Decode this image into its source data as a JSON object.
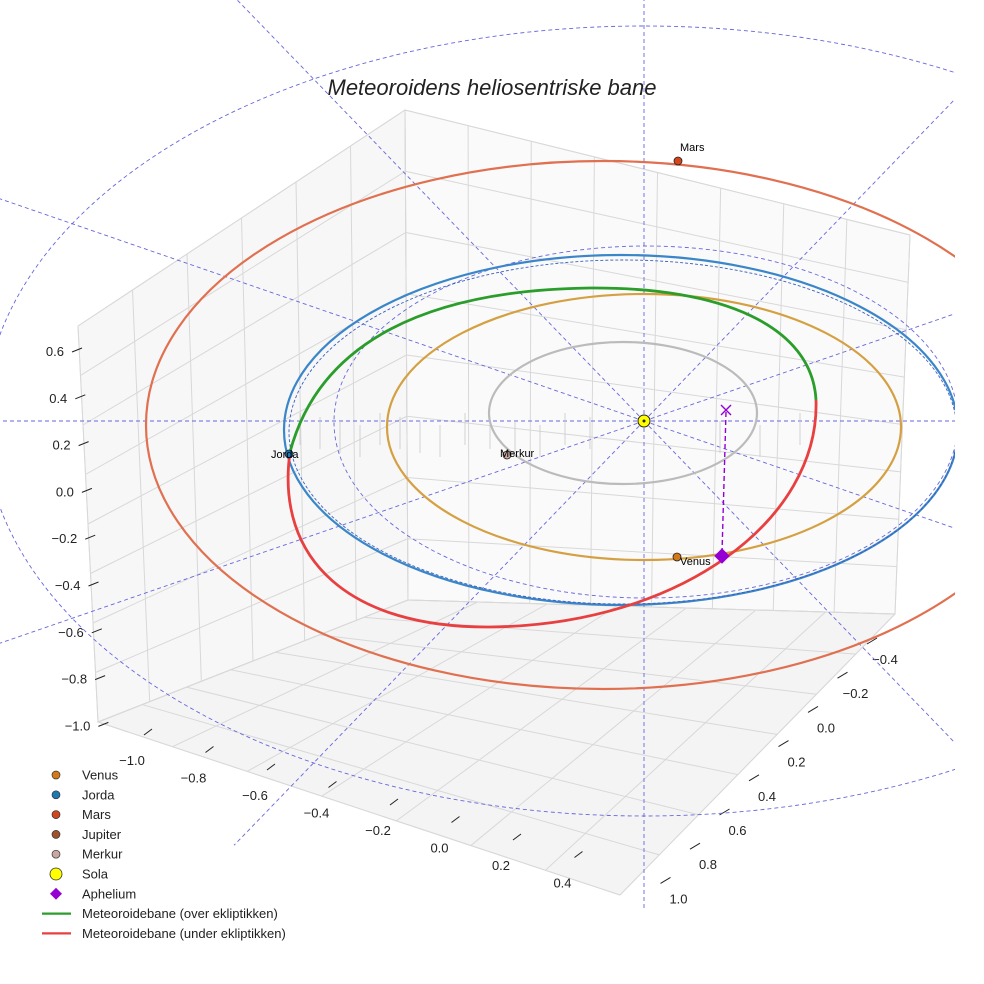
{
  "chart_data": {
    "type": "scatter",
    "projection": "3d",
    "title": "Meteoroidens heliosentriske bane",
    "xlabel": "",
    "ylabel": "",
    "zlabel": "",
    "x_ticks": [
      "−1.0",
      "−0.8",
      "−0.6",
      "−0.4",
      "−0.2",
      "0.0",
      "0.2",
      "0.4"
    ],
    "y_ticks": [
      "−0.4",
      "−0.2",
      "0.0",
      "0.2",
      "0.4",
      "0.6",
      "0.8",
      "1.0"
    ],
    "z_ticks": [
      "0.6",
      "0.4",
      "0.2",
      "0.0",
      "−0.2",
      "−0.4",
      "−0.6",
      "−0.8",
      "−1.0"
    ],
    "grid": true,
    "legend_position": "bottom-left",
    "orbits": [
      {
        "name": "Venus",
        "color": "#d4a042"
      },
      {
        "name": "Jorda",
        "color": "#3a86c8"
      },
      {
        "name": "Mars",
        "color": "#e07050"
      },
      {
        "name": "Merkur",
        "color": "#bbbbbb"
      }
    ],
    "planets": [
      {
        "name": "Venus",
        "label": "Venus",
        "color": "#d4791a"
      },
      {
        "name": "Jorda",
        "label": "Jorda",
        "color": "#1f77b4"
      },
      {
        "name": "Mars",
        "label": "Mars",
        "color": "#d2461e"
      },
      {
        "name": "Merkur",
        "label": "Merkur",
        "color": "#c8a8a0"
      }
    ],
    "sun": {
      "name": "Sola",
      "color": "#ffff00"
    },
    "aphelion": {
      "name": "Aphelium",
      "color": "#9400d3"
    },
    "meteoroid_orbit": [
      {
        "name": "Meteoroidebane (over ekliptikken)",
        "color": "#2a9d2a"
      },
      {
        "name": "Meteoroidebane (under ekliptikken)",
        "color": "#e84040"
      }
    ],
    "reference_grid_color": "#6666dd"
  },
  "legend": [
    {
      "label": "Venus",
      "marker": "circle",
      "color": "#d4791a"
    },
    {
      "label": "Jorda",
      "marker": "circle",
      "color": "#1f77b4"
    },
    {
      "label": "Mars",
      "marker": "circle",
      "color": "#d2461e"
    },
    {
      "label": "Jupiter",
      "marker": "circle",
      "color": "#a0522d"
    },
    {
      "label": "Merkur",
      "marker": "circle",
      "color": "#c8a8a0"
    },
    {
      "label": "Sola",
      "marker": "bigcircle",
      "color": "#ffff00"
    },
    {
      "label": "Aphelium",
      "marker": "diamond",
      "color": "#9400d3"
    },
    {
      "label": "Meteoroidebane (over ekliptikken)",
      "marker": "line",
      "color": "#2a9d2a"
    },
    {
      "label": "Meteoroidebane (under ekliptikken)",
      "marker": "line",
      "color": "#e84040"
    }
  ]
}
